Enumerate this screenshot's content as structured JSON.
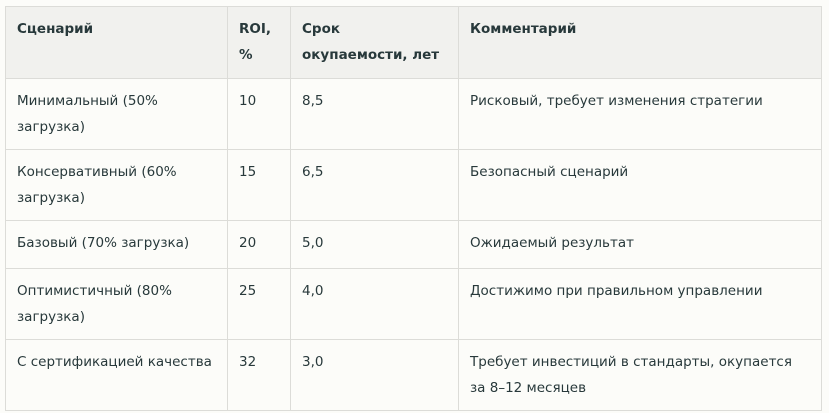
{
  "table": {
    "headers": [
      "Сценарий",
      "ROI, %",
      "Срок окупаемости, лет",
      "Комментарий"
    ],
    "rows": [
      [
        "Минимальный (50% загрузка)",
        "10",
        "8,5",
        "Рисковый, требует изменения стратегии"
      ],
      [
        "Консервативный (60% загрузка)",
        "15",
        "6,5",
        "Безопасный сценарий"
      ],
      [
        "Базовый (70% загрузка)",
        "20",
        "5,0",
        "Ожидаемый результат"
      ],
      [
        "Оптимистичный (80% загрузка)",
        "25",
        "4,0",
        "Достижимо при правильном управлении"
      ],
      [
        "С сертификацией качества",
        "32",
        "3,0",
        "Требует инвестиций в стандарты, окупается за 8–12 месяцев"
      ]
    ]
  }
}
